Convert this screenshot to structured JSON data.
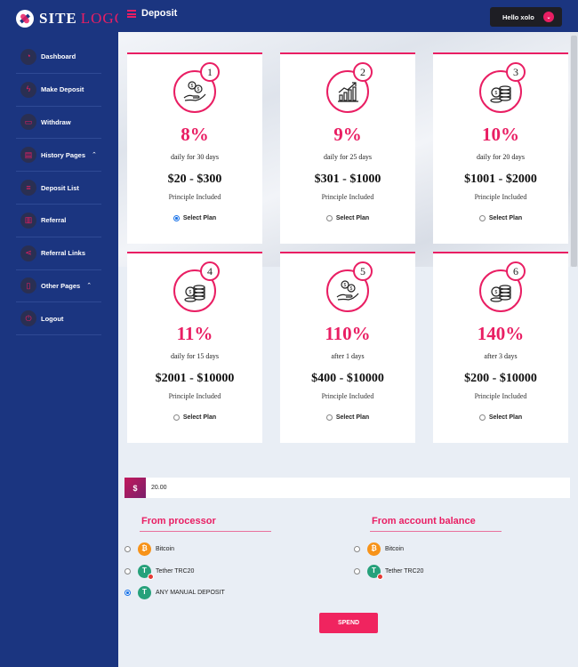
{
  "brand": {
    "site": "SITE",
    "logo": "LOGO"
  },
  "sidebar": {
    "items": [
      {
        "label": "Dashboard",
        "icon": "dashboard-icon",
        "glyph": "◔"
      },
      {
        "label": "Make Deposit",
        "icon": "lightning-icon",
        "glyph": "ϟ"
      },
      {
        "label": "Withdraw",
        "icon": "inbox-icon",
        "glyph": "▭"
      },
      {
        "label": "History Pages",
        "icon": "document-icon",
        "glyph": "▤",
        "caret": "⌃"
      },
      {
        "label": "Deposit List",
        "icon": "list-icon",
        "glyph": "≡"
      },
      {
        "label": "Referral",
        "icon": "bar-chart-icon",
        "glyph": "▥"
      },
      {
        "label": "Referral Links",
        "icon": "share-icon",
        "glyph": "⋖"
      },
      {
        "label": "Other Pages",
        "icon": "bookmark-icon",
        "glyph": "▯",
        "caret": "⌃"
      },
      {
        "label": "Logout",
        "icon": "power-icon",
        "glyph": "⏻"
      }
    ]
  },
  "header": {
    "title": "Deposit",
    "user_button": "Hello xolo",
    "caret": "⌄"
  },
  "plans": [
    {
      "num": "1",
      "icon": "hand-coins-icon",
      "percent": "8%",
      "period": "daily for 30 days",
      "range": "$20 - $300",
      "principle": "Principle Included",
      "select": "Select Plan",
      "selected": true
    },
    {
      "num": "2",
      "icon": "growth-chart-icon",
      "percent": "9%",
      "period": "daily for 25 days",
      "range": "$301 - $1000",
      "principle": "Principle Included",
      "select": "Select Plan",
      "selected": false
    },
    {
      "num": "3",
      "icon": "coin-stack-icon",
      "percent": "10%",
      "period": "daily for 20 days",
      "range": "$1001 - $2000",
      "principle": "Principle Included",
      "select": "Select Plan",
      "selected": false
    },
    {
      "num": "4",
      "icon": "coin-stack-icon",
      "percent": "11%",
      "period": "daily for 15 days",
      "range": "$2001 - $10000",
      "principle": "Principle Included",
      "select": "Select Plan",
      "selected": false
    },
    {
      "num": "5",
      "icon": "hand-coins-icon",
      "percent": "110%",
      "period": "after 1 days",
      "range": "$400 - $10000",
      "principle": "Principle Included",
      "select": "Select Plan",
      "selected": false
    },
    {
      "num": "6",
      "icon": "coin-stack-icon",
      "percent": "140%",
      "period": "after 3 days",
      "range": "$200 - $10000",
      "principle": "Principle Included",
      "select": "Select Plan",
      "selected": false
    }
  ],
  "amount": {
    "currency": "$",
    "value": "20.00"
  },
  "processor": {
    "title": "From processor",
    "options": [
      {
        "label": "Bitcoin",
        "coin": "btc",
        "symbol": "₿",
        "icon": "bitcoin-icon",
        "selected": false
      },
      {
        "label": "Tether TRC20",
        "coin": "usdt",
        "symbol": "T",
        "icon": "tether-icon",
        "badge": true,
        "selected": false
      },
      {
        "label": "ANY MANUAL DEPOSIT",
        "coin": "usdt",
        "symbol": "T",
        "icon": "tether-icon",
        "selected": true
      }
    ]
  },
  "balance": {
    "title": "From account balance",
    "options": [
      {
        "label": "Bitcoin",
        "coin": "btc",
        "symbol": "₿",
        "icon": "bitcoin-icon",
        "selected": false
      },
      {
        "label": "Tether TRC20",
        "coin": "usdt",
        "symbol": "T",
        "icon": "tether-icon",
        "badge": true,
        "selected": false
      }
    ]
  },
  "spend_button": "SPEND",
  "colors": {
    "sidebar": "#1b3580",
    "accent": "#e91e63",
    "button": "#f0245f",
    "background": "#e9eef5"
  }
}
